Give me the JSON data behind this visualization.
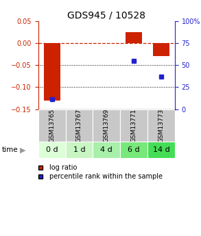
{
  "title": "GDS945 / 10528",
  "samples": [
    "GSM13765",
    "GSM13767",
    "GSM13769",
    "GSM13771",
    "GSM13773"
  ],
  "time_labels": [
    "0 d",
    "1 d",
    "4 d",
    "6 d",
    "14 d"
  ],
  "log_ratios": [
    -0.13,
    0.0,
    0.0,
    0.025,
    -0.03
  ],
  "percentile_ranks": [
    11,
    null,
    null,
    55,
    37
  ],
  "ylim_left": [
    -0.15,
    0.05
  ],
  "ylim_right": [
    0,
    100
  ],
  "left_yticks": [
    -0.15,
    -0.1,
    -0.05,
    0.0,
    0.05
  ],
  "right_yticks": [
    0,
    25,
    50,
    75,
    100
  ],
  "bar_color": "#cc2200",
  "dot_color": "#2222cc",
  "dashed_line_color": "#cc2200",
  "plot_bg": "#ffffff",
  "sample_bg": "#c8c8c8",
  "time_bg_colors": [
    "#ddffd8",
    "#c8f5c2",
    "#a8efaa",
    "#77e87a",
    "#44dd55"
  ],
  "legend_bar_label": "log ratio",
  "legend_dot_label": "percentile rank within the sample",
  "title_fontsize": 10,
  "tick_fontsize": 7,
  "sample_fontsize": 6.5,
  "time_fontsize": 8
}
